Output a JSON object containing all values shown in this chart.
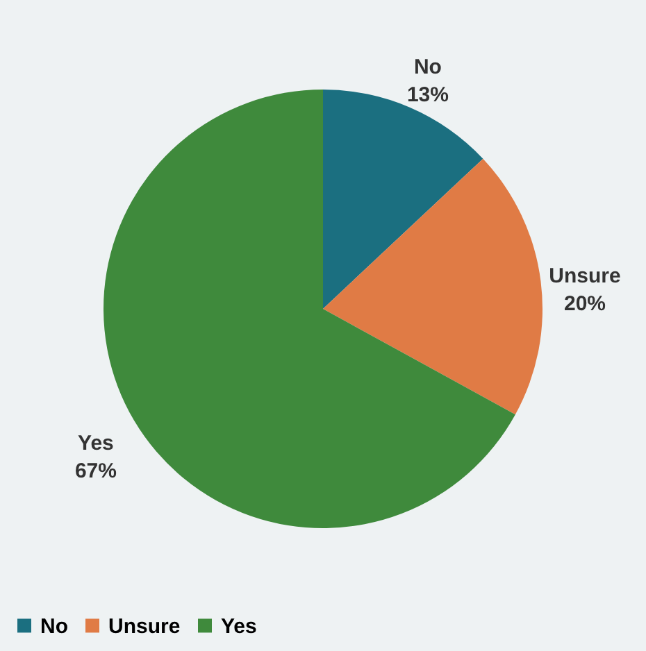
{
  "chart_data": {
    "type": "pie",
    "categories": [
      "No",
      "Unsure",
      "Yes"
    ],
    "values": [
      13,
      20,
      67
    ],
    "value_labels": [
      "13%",
      "20%",
      "67%"
    ],
    "colors": [
      "#1b6f80",
      "#e07b45",
      "#3f8a3c"
    ],
    "legend": "bottom"
  }
}
